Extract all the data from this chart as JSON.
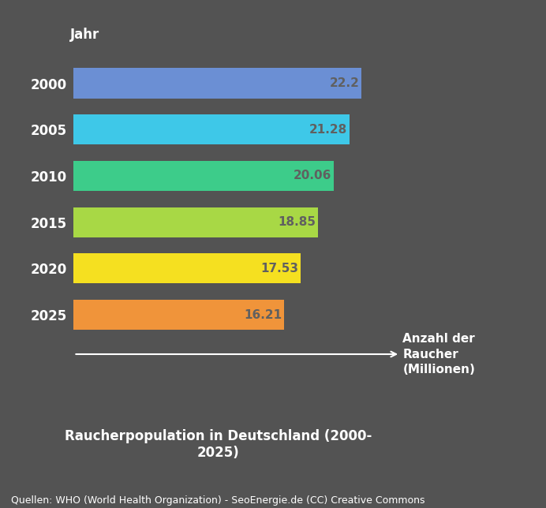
{
  "years": [
    "2000",
    "2005",
    "2010",
    "2015",
    "2020",
    "2025"
  ],
  "values": [
    22.2,
    21.28,
    20.06,
    18.85,
    17.53,
    16.21
  ],
  "bar_colors": [
    "#6B8FD4",
    "#3EC8E8",
    "#3DCC8A",
    "#A8D845",
    "#F5E020",
    "#F0943A"
  ],
  "background_color": "#535353",
  "text_color": "#FFFFFF",
  "label_color": "#606060",
  "title_line1": "Raucherpopulation in Deutschland (2000-",
  "title_line2": "2025)",
  "ylabel": "Jahr",
  "xlabel_line1": "Anzahl der",
  "xlabel_line2": "Raucher",
  "xlabel_line3": "(Millionen)",
  "footnote": "Quellen: WHO (World Health Organization) - SeoEnergie.de (CC) Creative Commons",
  "xlim_max": 25.5,
  "bar_height": 0.65,
  "title_fontsize": 12,
  "axis_label_fontsize": 11,
  "tick_fontsize": 12,
  "value_fontsize": 11,
  "footnote_fontsize": 9
}
